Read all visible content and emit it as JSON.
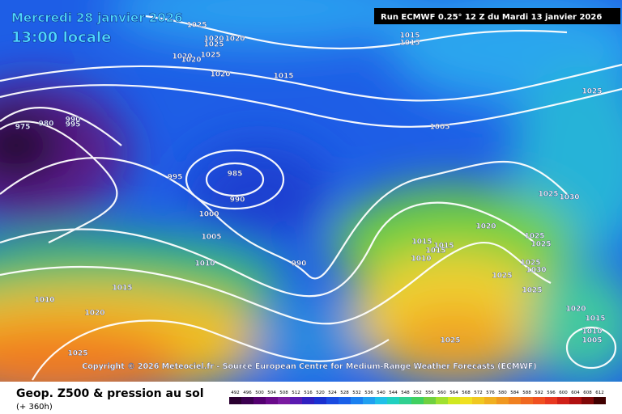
{
  "header": {
    "date": "Mercredi 28 janvier 2026",
    "time": "13:00 locale",
    "run": "Run ECMWF 0.25° 12 Z du Mardi 13 janvier 2026"
  },
  "map": {
    "isobar_labels": [
      1025,
      1020,
      1020,
      1025,
      1020,
      1020,
      1025,
      1020,
      1015,
      1015,
      1015,
      1025,
      1005,
      975,
      980,
      990,
      995,
      995,
      985,
      990,
      1000,
      1005,
      1010,
      990,
      1015,
      1010,
      1020,
      1025,
      1025,
      1030,
      1020,
      1015,
      1015,
      1015,
      1010,
      1025,
      1025,
      1025,
      1030,
      1025,
      1025,
      1020,
      1015,
      1010,
      1005,
      1025
    ],
    "copyright": "Copyright © 2026 Meteociel.fr - Source European Centre for Medium-Range Weather Forecasts (ECMWF)"
  },
  "footer": {
    "title": "Geop. Z500 & pression au sol",
    "subtitle": "(+ 360h)",
    "scale": [
      492,
      496,
      500,
      504,
      508,
      512,
      516,
      520,
      524,
      528,
      532,
      536,
      540,
      544,
      548,
      552,
      556,
      560,
      564,
      568,
      572,
      576,
      580,
      584,
      588,
      592,
      596,
      600,
      604,
      608,
      612
    ]
  }
}
